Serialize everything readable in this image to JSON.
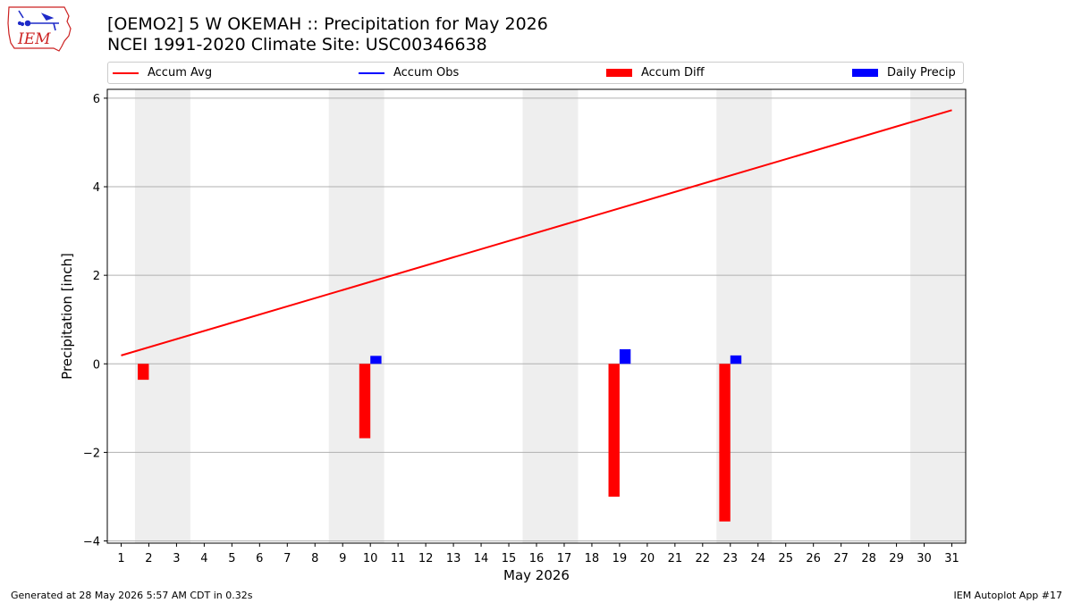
{
  "header": {
    "title_line1": "[OEMO2] 5 W OKEMAH :: Precipitation for May 2026",
    "title_line2": "NCEI 1991-2020 Climate Site: USC00346638",
    "logo_text": "IEM"
  },
  "legend": {
    "items": [
      {
        "label": "Accum Avg",
        "kind": "line",
        "color": "#ff0000"
      },
      {
        "label": "Accum Obs",
        "kind": "line",
        "color": "#0000ff"
      },
      {
        "label": "Accum Diff",
        "kind": "rect",
        "color": "#ff0000"
      },
      {
        "label": "Daily Precip",
        "kind": "rect",
        "color": "#0000ff"
      }
    ]
  },
  "chart_data": {
    "type": "bar",
    "xlabel": "May 2026",
    "ylabel": "Precipitation [inch]",
    "ylim": [
      -4.05,
      6.2
    ],
    "xlim": [
      0.5,
      31.5
    ],
    "yticks": [
      -4,
      -2,
      0,
      2,
      4,
      6
    ],
    "ytick_labels": [
      "−4",
      "−2",
      "0",
      "2",
      "4",
      "6"
    ],
    "xticks": [
      1,
      2,
      3,
      4,
      5,
      6,
      7,
      8,
      9,
      10,
      11,
      12,
      13,
      14,
      15,
      16,
      17,
      18,
      19,
      20,
      21,
      22,
      23,
      24,
      25,
      26,
      27,
      28,
      29,
      30,
      31
    ],
    "grid": "y",
    "weekend_shading": [
      [
        1.5,
        3.5
      ],
      [
        8.5,
        10.5
      ],
      [
        15.5,
        17.5
      ],
      [
        22.5,
        24.5
      ],
      [
        29.5,
        31.5
      ]
    ],
    "weekend_color": "#eeeeee",
    "series": [
      {
        "name": "Accum Avg",
        "kind": "line",
        "color": "#ff0000",
        "x": [
          1,
          31
        ],
        "values": [
          0.19,
          5.73
        ]
      },
      {
        "name": "Accum Diff",
        "kind": "bar",
        "color": "#ff0000",
        "x": [
          2,
          10,
          19,
          23
        ],
        "values": [
          -0.36,
          -1.68,
          -3.0,
          -3.56
        ]
      },
      {
        "name": "Daily Precip",
        "kind": "bar",
        "color": "#0000ff",
        "x": [
          10,
          19,
          23
        ],
        "values": [
          0.18,
          0.33,
          0.19
        ]
      }
    ]
  },
  "footer": {
    "left": "Generated at 28 May 2026 5:57 AM CDT in 0.32s",
    "right": "IEM Autoplot App #17"
  }
}
